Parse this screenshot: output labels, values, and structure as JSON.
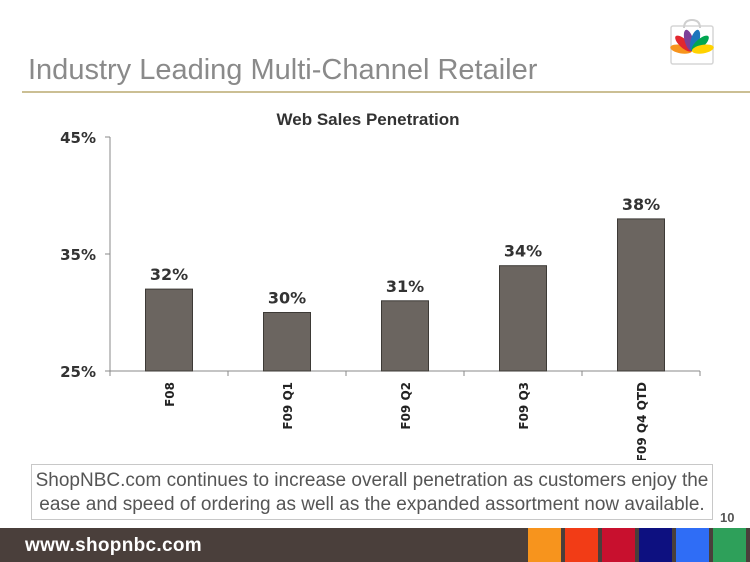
{
  "slide": {
    "title": "Industry Leading Multi-Channel Retailer",
    "page_number": "10",
    "caption": "ShopNBC.com continues to increase overall penetration as customers enjoy the ease and speed of ordering as well as the expanded assortment now available."
  },
  "footer": {
    "url": "www.shopnbc.com",
    "swatch_colors": [
      "#f7941d",
      "#f23c16",
      "#c8102e",
      "#0d1080",
      "#2f6df6",
      "#2ea05a"
    ]
  },
  "logo": {
    "icon": "nbc-peacock-bag-icon",
    "colors": [
      "#f7941d",
      "#e2272f",
      "#7d3f98",
      "#1b75bc",
      "#00a651",
      "#ffd200"
    ]
  },
  "chart_data": {
    "type": "bar",
    "title": "Web Sales Penetration",
    "categories": [
      "F08",
      "F09 Q1",
      "F09 Q2",
      "F09 Q3",
      "F09 Q4 QTD"
    ],
    "values": [
      32,
      30,
      31,
      34,
      38
    ],
    "data_labels": [
      "32%",
      "30%",
      "31%",
      "34%",
      "38%"
    ],
    "y_ticks": [
      "25%",
      "35%",
      "45%"
    ],
    "ylim": [
      25,
      45
    ],
    "bar_color": "#6b6560",
    "grid": false,
    "legend": "none"
  }
}
